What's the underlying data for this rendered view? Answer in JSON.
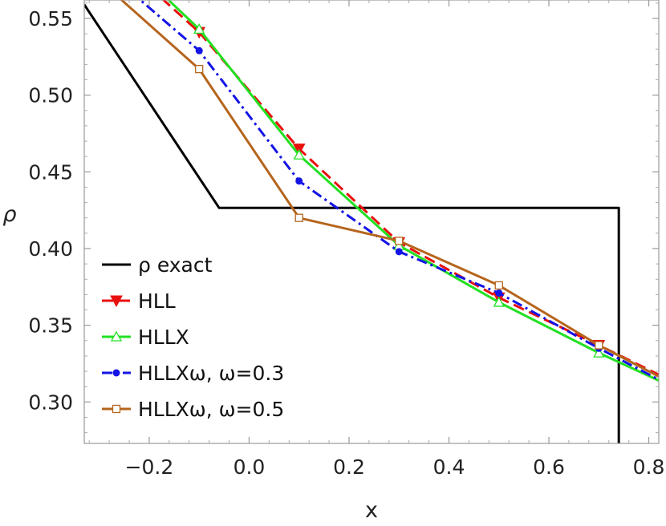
{
  "chart_data": {
    "type": "line",
    "xlabel": "x",
    "ylabel": "ρ",
    "xlim": [
      -0.33,
      0.82
    ],
    "ylim": [
      0.273,
      0.562
    ],
    "xticks": [
      -0.2,
      0.0,
      0.2,
      0.4,
      0.6,
      0.8
    ],
    "xtick_labels": [
      "−0.2",
      "0.0",
      "0.2",
      "0.4",
      "0.6",
      "0.8"
    ],
    "yticks": [
      0.3,
      0.35,
      0.4,
      0.45,
      0.5,
      0.55
    ],
    "ytick_labels": [
      "0.30",
      "0.35",
      "0.40",
      "0.45",
      "0.50",
      "0.55"
    ],
    "grid": false,
    "legend_position": "bottom-left",
    "series": [
      {
        "name": "ρ exact",
        "color": "#000000",
        "dash": "solid",
        "marker": "none",
        "x": [
          -0.33,
          -0.06,
          0.74,
          0.74
        ],
        "y": [
          0.559,
          0.4265,
          0.4265,
          0.273
        ]
      },
      {
        "name": "HLL",
        "color": "#e8100e",
        "dash": "dashed",
        "marker": "triangle-down-filled",
        "x": [
          -0.3,
          -0.1,
          0.1,
          0.3,
          0.5,
          0.7,
          0.9
        ],
        "y": [
          0.6,
          0.541,
          0.465,
          0.404,
          0.368,
          0.337,
          0.305
        ]
      },
      {
        "name": "HLLX",
        "color": "#22e022",
        "dash": "solid",
        "marker": "triangle-up-open",
        "x": [
          -0.3,
          -0.1,
          0.1,
          0.3,
          0.5,
          0.7,
          0.9
        ],
        "y": [
          0.605,
          0.543,
          0.461,
          0.402,
          0.365,
          0.332,
          0.302
        ]
      },
      {
        "name": "HLLXω, ω=0.3",
        "color": "#1414e6",
        "dash": "dashdot",
        "marker": "circle-filled",
        "x": [
          -0.3,
          -0.1,
          0.1,
          0.3,
          0.5,
          0.7,
          0.9
        ],
        "y": [
          0.585,
          0.529,
          0.444,
          0.398,
          0.371,
          0.335,
          0.301
        ]
      },
      {
        "name": "HLLXω, ω=0.5",
        "color": "#b5651d",
        "dash": "solid",
        "marker": "square-open",
        "x": [
          -0.3,
          -0.1,
          0.1,
          0.3,
          0.5,
          0.7,
          0.9
        ],
        "y": [
          0.575,
          0.517,
          0.42,
          0.405,
          0.376,
          0.337,
          0.303
        ]
      }
    ]
  }
}
